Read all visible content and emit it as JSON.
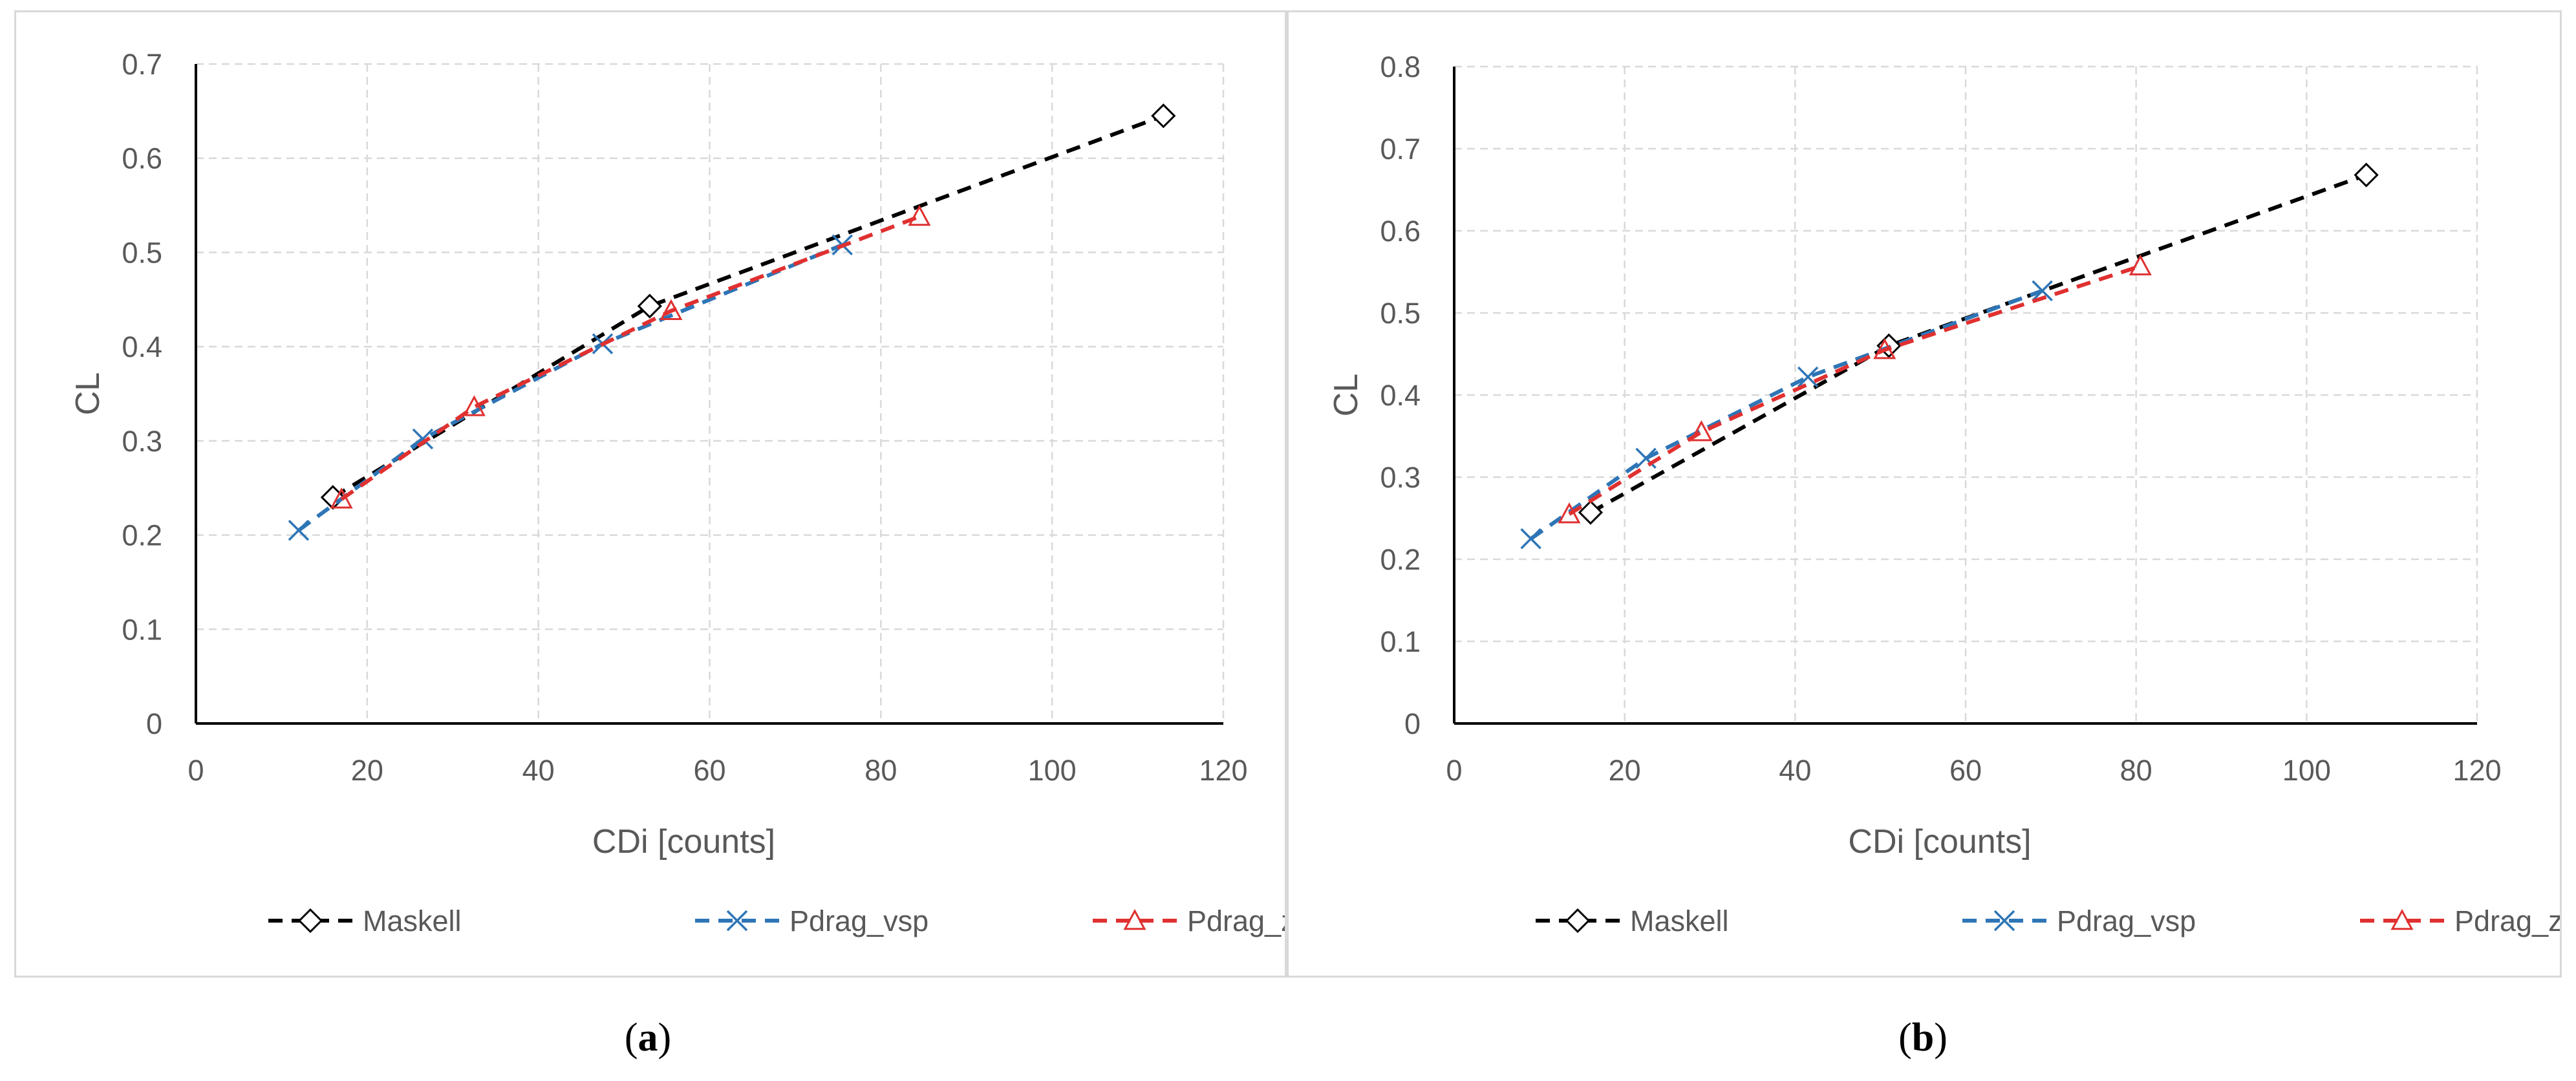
{
  "chart_data": [
    {
      "type": "line",
      "panel_label": "a",
      "xlabel": "CDi [counts]",
      "ylabel": "CL",
      "xlim": [
        0,
        120
      ],
      "ylim": [
        0,
        0.7
      ],
      "xticks": [
        0,
        20,
        40,
        60,
        80,
        100,
        120
      ],
      "yticks": [
        0,
        0.1,
        0.2,
        0.3,
        0.4,
        0.5,
        0.6,
        0.7
      ],
      "ytick_labels": [
        "0",
        "0.1",
        "0.2",
        "0.3",
        "0.4",
        "0.5",
        "0.6",
        "0.7"
      ],
      "grid": true,
      "legend_position": "bottom",
      "series": [
        {
          "name": "Maskell",
          "color": "#000000",
          "marker": "diamond",
          "x": [
            16,
            53,
            113
          ],
          "y": [
            0.24,
            0.443,
            0.645
          ]
        },
        {
          "name": "Pdrag_vsp",
          "color": "#2e75b6",
          "marker": "x",
          "x": [
            12,
            26.5,
            47.5,
            75.5
          ],
          "y": [
            0.205,
            0.302,
            0.403,
            0.508
          ]
        },
        {
          "name": "Pdrag_zen",
          "color": "#e03030",
          "marker": "triangle",
          "x": [
            17,
            32.5,
            55.5,
            84.5
          ],
          "y": [
            0.238,
            0.336,
            0.438,
            0.538
          ]
        }
      ]
    },
    {
      "type": "line",
      "panel_label": "b",
      "xlabel": "CDi [counts]",
      "ylabel": "CL",
      "xlim": [
        0,
        120
      ],
      "ylim": [
        0,
        0.8
      ],
      "xticks": [
        0,
        20,
        40,
        60,
        80,
        100,
        120
      ],
      "yticks": [
        0,
        0.1,
        0.2,
        0.3,
        0.4,
        0.5,
        0.6,
        0.7,
        0.8
      ],
      "ytick_labels": [
        "0",
        "0.1",
        "0.2",
        "0.3",
        "0.4",
        "0.5",
        "0.6",
        "0.7",
        "0.8"
      ],
      "grid": true,
      "legend_position": "bottom",
      "series": [
        {
          "name": "Maskell",
          "color": "#000000",
          "marker": "diamond",
          "x": [
            16,
            51,
            107
          ],
          "y": [
            0.257,
            0.46,
            0.668
          ]
        },
        {
          "name": "Pdrag_vsp",
          "color": "#2e75b6",
          "marker": "x",
          "x": [
            9,
            22.5,
            41.5,
            69
          ],
          "y": [
            0.225,
            0.323,
            0.422,
            0.527
          ]
        },
        {
          "name": "Pdrag_zen",
          "color": "#e03030",
          "marker": "triangle",
          "x": [
            13.5,
            29,
            50.5,
            80.5
          ],
          "y": [
            0.255,
            0.355,
            0.455,
            0.557
          ]
        }
      ]
    }
  ],
  "captions": {
    "a": {
      "open": "(",
      "label": "a",
      "close": ")"
    },
    "b": {
      "open": "(",
      "label": "b",
      "close": ")"
    }
  }
}
